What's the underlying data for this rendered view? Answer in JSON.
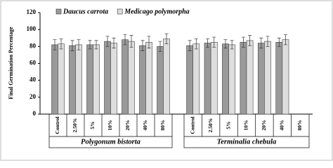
{
  "chart_data": {
    "type": "bar",
    "ylabel": "Final Germination Percentage",
    "group_labels": [
      "Polygonum bistorta",
      "Terminalia chebula"
    ],
    "categories": [
      "Control",
      "2.50%",
      "5%",
      "10%",
      "20%",
      "40%",
      "80%",
      "Control",
      "2.50%",
      "5%",
      "10%",
      "20%",
      "40%",
      "80%"
    ],
    "series": [
      {
        "name": "Daucus carrota",
        "color": "#9a9a9a",
        "values": [
          82,
          81,
          82,
          86,
          88,
          81,
          80,
          81,
          84,
          83,
          85,
          84,
          85,
          null
        ],
        "errors": [
          6,
          6,
          5,
          6,
          6,
          6,
          6,
          6,
          5,
          5,
          6,
          6,
          5,
          null
        ]
      },
      {
        "name": "Medicago polymorpha",
        "color": "#dedede",
        "values": [
          83,
          82,
          82,
          84,
          86,
          85,
          89,
          83,
          85,
          82,
          87,
          86,
          88,
          null
        ],
        "errors": [
          6,
          6,
          5,
          6,
          7,
          7,
          6,
          6,
          6,
          5,
          6,
          6,
          6,
          null
        ]
      }
    ],
    "ylim": [
      0,
      120
    ],
    "yticks": [
      0,
      20,
      40,
      60,
      80,
      100,
      120
    ],
    "grid": false
  }
}
